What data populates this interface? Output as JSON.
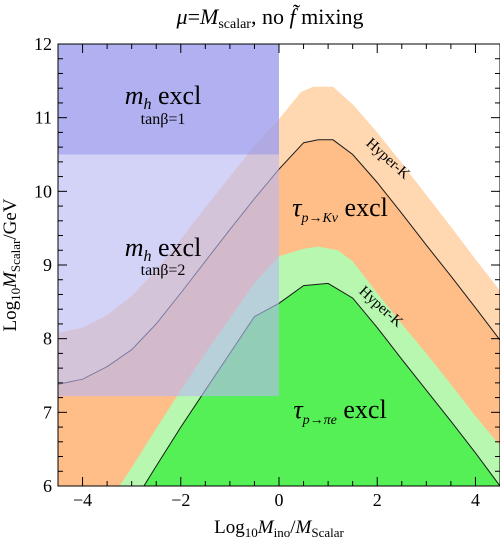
{
  "chart_data": {
    "type": "area",
    "title": "μ=M_scalar, no f̃ mixing",
    "xlabel": "Log10 Mino/MScalar",
    "ylabel": "Log10 MScalar/GeV",
    "xlim": [
      -4.5,
      4.5
    ],
    "ylim": [
      6,
      12
    ],
    "x_ticks": [
      -4,
      -2,
      0,
      2,
      4
    ],
    "y_ticks": [
      6,
      7,
      8,
      9,
      10,
      11,
      12
    ],
    "grid": false,
    "colors": {
      "hyperk_kv": "#ffd7b0",
      "kv_excl": "#ffbd88",
      "hyperk_pie": "#b7f7b0",
      "pie_excl": "#55f055",
      "mh_tanb1": "#aaa8f2",
      "mh_tanb2": "#d2d2f8"
    },
    "series": [
      {
        "name": "τ p→Kν excl",
        "boundary": [
          [
            -4.5,
            7.38
          ],
          [
            -4,
            7.45
          ],
          [
            -3.5,
            7.62
          ],
          [
            -3,
            7.85
          ],
          [
            -2.5,
            8.2
          ],
          [
            -2,
            8.62
          ],
          [
            -1.5,
            9.05
          ],
          [
            -1,
            9.48
          ],
          [
            -0.5,
            9.9
          ],
          [
            0,
            10.3
          ],
          [
            0.5,
            10.66
          ],
          [
            0.8,
            10.7
          ],
          [
            1.1,
            10.7
          ],
          [
            1.5,
            10.5
          ],
          [
            2,
            10.12
          ],
          [
            2.5,
            9.7
          ],
          [
            3,
            9.27
          ],
          [
            3.5,
            8.85
          ],
          [
            4,
            8.42
          ],
          [
            4.5,
            7.98
          ]
        ]
      },
      {
        "name": "Hyper-K p→Kν",
        "boundary": [
          [
            -4.5,
            8.08
          ],
          [
            -4,
            8.15
          ],
          [
            -3.5,
            8.32
          ],
          [
            -3,
            8.58
          ],
          [
            -2.5,
            8.93
          ],
          [
            -2,
            9.35
          ],
          [
            -1.5,
            9.78
          ],
          [
            -1,
            10.2
          ],
          [
            -0.5,
            10.62
          ],
          [
            0,
            10.98
          ],
          [
            0.45,
            11.35
          ],
          [
            0.7,
            11.42
          ],
          [
            1.1,
            11.42
          ],
          [
            1.5,
            11.18
          ],
          [
            2,
            10.8
          ],
          [
            2.5,
            10.38
          ],
          [
            3,
            9.95
          ],
          [
            3.5,
            9.52
          ],
          [
            4,
            9.08
          ],
          [
            4.5,
            8.65
          ]
        ]
      },
      {
        "name": "τ p→πe excl",
        "boundary": [
          [
            -2.75,
            6
          ],
          [
            -2.5,
            6.27
          ],
          [
            -2,
            6.8
          ],
          [
            -1.5,
            7.3
          ],
          [
            -1,
            7.8
          ],
          [
            -0.5,
            8.3
          ],
          [
            0,
            8.48
          ],
          [
            0.5,
            8.72
          ],
          [
            1,
            8.75
          ],
          [
            1.5,
            8.55
          ],
          [
            2,
            8.15
          ],
          [
            2.5,
            7.72
          ],
          [
            3,
            7.3
          ],
          [
            3.5,
            6.88
          ],
          [
            4,
            6.45
          ],
          [
            4.5,
            6
          ]
        ]
      },
      {
        "name": "Hyper-K p→πe",
        "boundary": [
          [
            -3.25,
            6
          ],
          [
            -3,
            6.25
          ],
          [
            -2.5,
            6.78
          ],
          [
            -2,
            7.3
          ],
          [
            -1.5,
            7.8
          ],
          [
            -1,
            8.28
          ],
          [
            -0.5,
            8.75
          ],
          [
            0,
            9.12
          ],
          [
            0.5,
            9.22
          ],
          [
            0.8,
            9.25
          ],
          [
            1.2,
            9.2
          ],
          [
            1.5,
            9.05
          ],
          [
            2,
            8.62
          ],
          [
            2.5,
            8.2
          ],
          [
            3,
            7.8
          ],
          [
            3.5,
            7.38
          ],
          [
            4,
            6.95
          ],
          [
            4.5,
            6.55
          ]
        ]
      },
      {
        "name": "m_h excl tanβ=2",
        "region": {
          "x": [
            -4.5,
            0
          ],
          "y": [
            7.22,
            12
          ]
        }
      },
      {
        "name": "m_h excl tanβ=1",
        "region": {
          "x": [
            -4.5,
            0
          ],
          "y": [
            10.5,
            12
          ]
        }
      }
    ],
    "annotations": {
      "mh1_main": "m",
      "mh1_sub": "h",
      "mh1_rest": " excl",
      "mh1_tan": "tanβ=1",
      "mh2_main": "m",
      "mh2_sub": "h",
      "mh2_rest": " excl",
      "mh2_tan": "tanβ=2",
      "kv_tau": "τ",
      "kv_sub": "p→Kν",
      "kv_rest": " excl",
      "pie_tau": "τ",
      "pie_sub": "p→πe",
      "pie_rest": " excl",
      "hyperk_upper": "Hyper-K",
      "hyperk_lower": "Hyper-K"
    },
    "title_parts": {
      "mu": "μ",
      "eq": "=",
      "M": "M",
      "scalar": "scalar",
      "rest": ", no ",
      "f": "f̃",
      "mixing": " mixing"
    },
    "xlabel_parts": {
      "log": "Log",
      "ten": "10",
      "M1": "M",
      "ino": "ino",
      "slash": "/",
      "M2": "M",
      "Scalar": "Scalar"
    },
    "ylabel_parts": {
      "log": "Log",
      "ten": "10",
      "M": "M",
      "Scalar": "Scalar",
      "rest": "/GeV"
    }
  }
}
